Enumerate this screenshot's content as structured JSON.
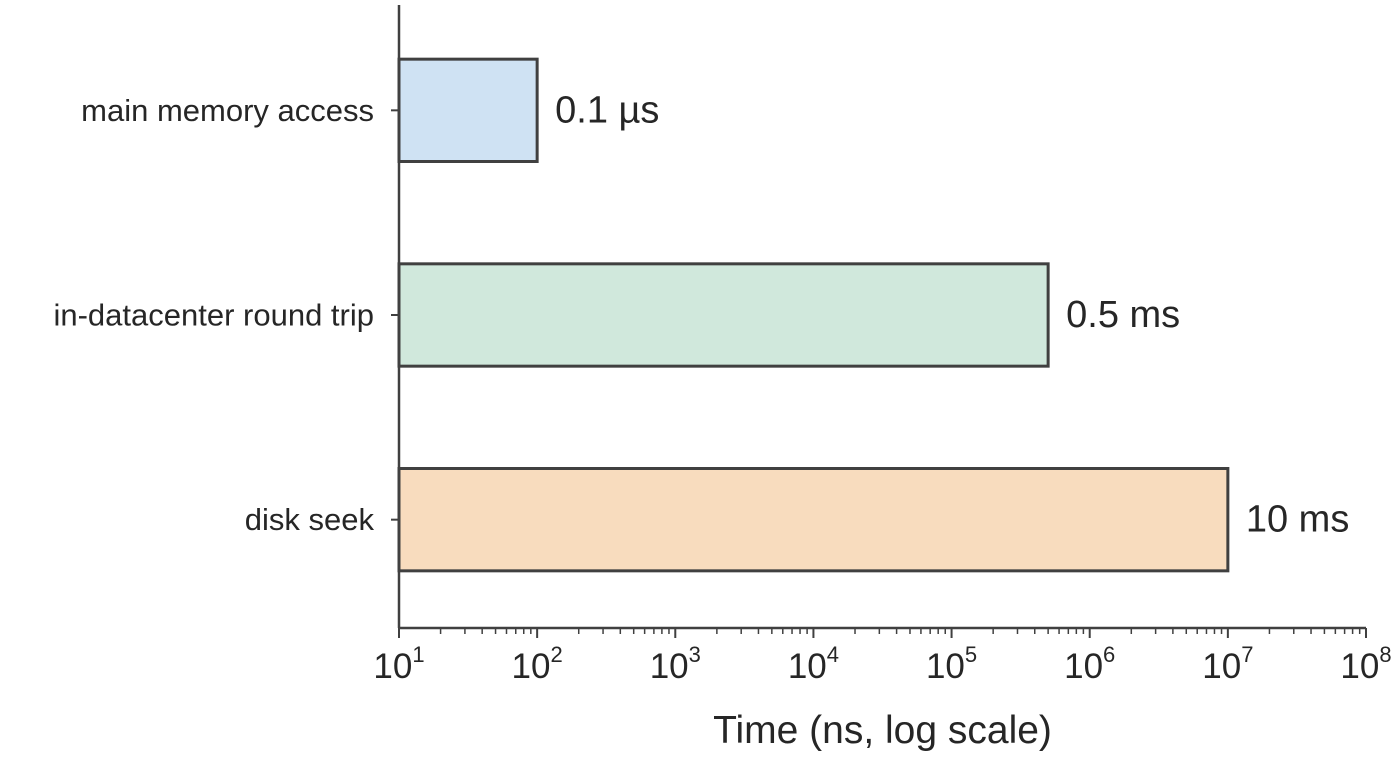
{
  "chart_data": {
    "type": "bar",
    "orientation": "horizontal",
    "title": "",
    "xlabel": "Time (ns, log scale)",
    "ylabel": "",
    "xscale": "log",
    "xlim": [
      10,
      100000000
    ],
    "x_tick_labels": [
      "10^1",
      "10^2",
      "10^3",
      "10^4",
      "10^5",
      "10^6",
      "10^7",
      "10^8"
    ],
    "categories": [
      "main memory access",
      "in-datacenter round trip",
      "disk seek"
    ],
    "values": [
      100,
      500000,
      10000000
    ],
    "value_labels": [
      "0.1 µs",
      "0.5 ms",
      "10 ms"
    ],
    "colors": [
      "#cfe2f3",
      "#d0e8dc",
      "#f8dcbe"
    ],
    "edge_color": "#404040",
    "grid": false,
    "legend": "none"
  }
}
